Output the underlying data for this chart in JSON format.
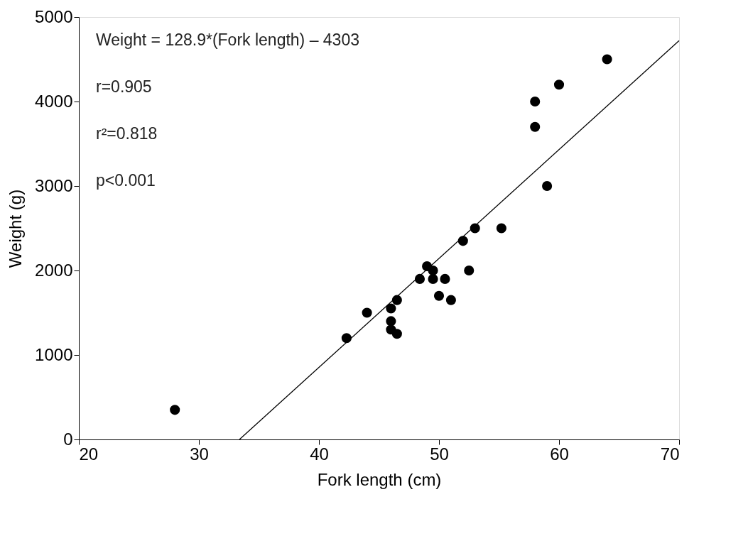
{
  "chart_data": {
    "type": "scatter",
    "xlabel": "Fork length (cm)",
    "ylabel": "Weight (g)",
    "xlim": [
      20,
      70
    ],
    "xticks": [
      20,
      30,
      40,
      50,
      60,
      70
    ],
    "ylim": [
      0,
      5000
    ],
    "yticks": [
      0,
      1000,
      2000,
      3000,
      4000,
      5000
    ],
    "grid": false,
    "marker": "circle",
    "series": [
      {
        "color": "#000000",
        "x": [
          28,
          42.3,
          44,
          46,
          46,
          46,
          46.5,
          46.5,
          48.4,
          49,
          49.5,
          49.5,
          50.5,
          50,
          51,
          52.5,
          52,
          53,
          55.2,
          58,
          58,
          59,
          60,
          64
        ],
        "values": [
          350,
          1200,
          1500,
          1550,
          1400,
          1300,
          1250,
          1650,
          1900,
          2050,
          2000,
          1900,
          1900,
          1700,
          1650,
          2000,
          2350,
          2500,
          2500,
          4000,
          3700,
          3000,
          4200,
          4500
        ]
      },
      {
        "type": "line",
        "marker": "none",
        "color": "#000000",
        "line_style": "solid",
        "x": [
          33.38,
          70
        ],
        "values": [
          0,
          4720
        ]
      }
    ],
    "annotations": [
      "Weight = 128.9*(Fork length) – 4303",
      "r=0.905",
      "r²=0.818",
      "p<0.001"
    ]
  }
}
